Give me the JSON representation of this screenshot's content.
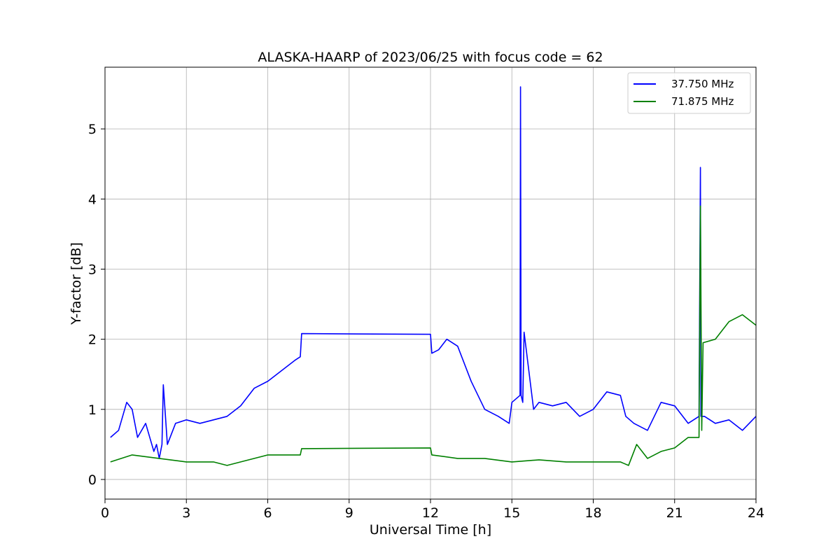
{
  "chart_data": {
    "type": "line",
    "title": "ALASKA-HAARP of 2023/06/25 with focus code = 62",
    "xlabel": "Universal Time [h]",
    "ylabel": "Y-factor [dB]",
    "xlim": [
      0,
      24
    ],
    "ylim": [
      -0.28,
      5.88
    ],
    "xticks": [
      0,
      3,
      6,
      9,
      12,
      15,
      18,
      21,
      24
    ],
    "xtick_labels": [
      "0",
      "3",
      "6",
      "9",
      "12",
      "15",
      "18",
      "21",
      "24"
    ],
    "yticks": [
      0,
      1,
      2,
      3,
      4,
      5
    ],
    "ytick_labels": [
      "0",
      "1",
      "2",
      "3",
      "4",
      "5"
    ],
    "grid": true,
    "legend_position": "top-right",
    "series": [
      {
        "name": "37.750 MHz",
        "color": "#0000ff",
        "x": [
          0.2,
          0.5,
          0.8,
          1.0,
          1.2,
          1.5,
          1.8,
          1.9,
          2.0,
          2.1,
          2.15,
          2.3,
          2.6,
          3.0,
          3.5,
          4.0,
          4.5,
          5.0,
          5.5,
          6.0,
          6.5,
          7.0,
          7.2,
          7.25,
          12.0,
          12.05,
          12.3,
          12.6,
          13.0,
          13.5,
          14.0,
          14.5,
          14.9,
          15.0,
          15.3,
          15.32,
          15.34,
          15.4,
          15.45,
          15.8,
          16.0,
          16.5,
          17.0,
          17.5,
          18.0,
          18.5,
          19.0,
          19.2,
          19.5,
          20.0,
          20.5,
          21.0,
          21.5,
          21.9,
          21.95,
          21.97,
          22.1,
          22.5,
          23.0,
          23.5,
          24.0
        ],
        "y": [
          0.6,
          0.7,
          1.1,
          1.0,
          0.6,
          0.8,
          0.4,
          0.5,
          0.3,
          0.5,
          1.35,
          0.5,
          0.8,
          0.85,
          0.8,
          0.85,
          0.9,
          1.05,
          1.3,
          1.4,
          1.55,
          1.7,
          1.75,
          2.08,
          2.07,
          1.8,
          1.85,
          2.0,
          1.9,
          1.4,
          1.0,
          0.9,
          0.8,
          1.1,
          1.2,
          5.6,
          1.2,
          1.1,
          2.1,
          1.0,
          1.1,
          1.05,
          1.1,
          0.9,
          1.0,
          1.25,
          1.2,
          0.9,
          0.8,
          0.7,
          1.1,
          1.05,
          0.8,
          0.9,
          4.45,
          0.9,
          0.9,
          0.8,
          0.85,
          0.7,
          0.9
        ]
      },
      {
        "name": "71.875 MHz",
        "color": "#008000",
        "x": [
          0.2,
          1.0,
          2.0,
          3.0,
          4.0,
          4.5,
          5.0,
          6.0,
          7.0,
          7.2,
          7.25,
          12.0,
          12.05,
          13.0,
          14.0,
          15.0,
          16.0,
          17.0,
          18.0,
          19.0,
          19.3,
          19.6,
          20.0,
          20.5,
          21.0,
          21.5,
          21.9,
          21.95,
          22.0,
          22.05,
          22.5,
          23.0,
          23.5,
          24.0
        ],
        "y": [
          0.25,
          0.35,
          0.3,
          0.25,
          0.25,
          0.2,
          0.25,
          0.35,
          0.35,
          0.35,
          0.44,
          0.45,
          0.35,
          0.3,
          0.3,
          0.25,
          0.28,
          0.25,
          0.25,
          0.25,
          0.2,
          0.5,
          0.3,
          0.4,
          0.45,
          0.6,
          0.6,
          3.9,
          0.7,
          1.95,
          2.0,
          2.25,
          2.35,
          2.2
        ]
      }
    ]
  }
}
